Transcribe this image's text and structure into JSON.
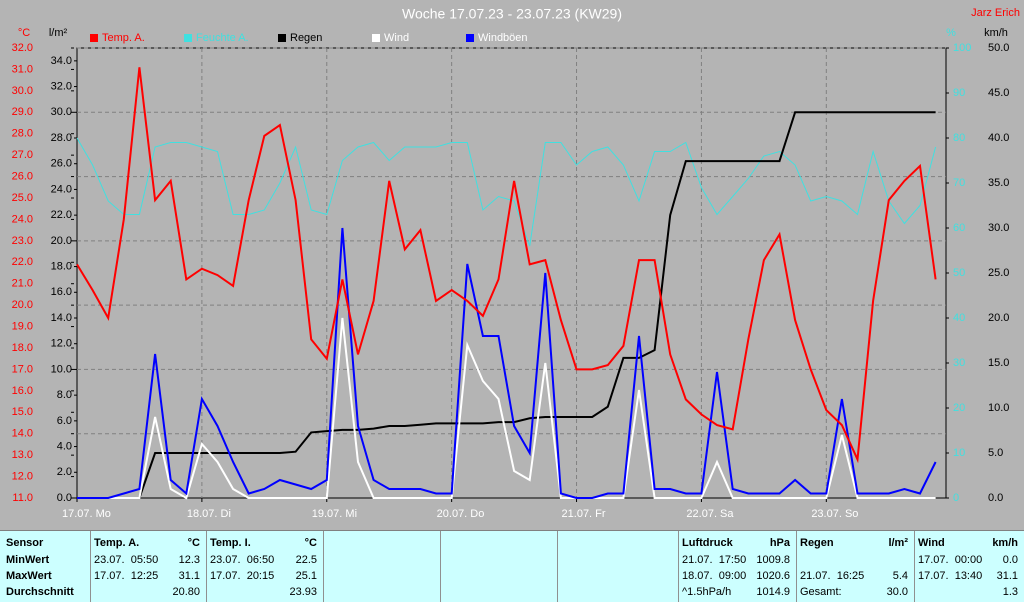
{
  "chart_data": {
    "type": "line",
    "title": "Woche 17.07.23 - 23.07.23 (KW29)",
    "author": "Jarz Erich",
    "axis_units": {
      "y": "°C",
      "y2": "l/m²",
      "y3": "%",
      "y4": "km/h"
    },
    "x": [
      0,
      3,
      6,
      9,
      12,
      15,
      18,
      21,
      24,
      27,
      30,
      33,
      36,
      39,
      42,
      45,
      48,
      51,
      54,
      57,
      60,
      63,
      66,
      69,
      72,
      75,
      78,
      81,
      84,
      87,
      90,
      93,
      96,
      99,
      102,
      105,
      108,
      111,
      114,
      117,
      120,
      123,
      126,
      129,
      132,
      135,
      138,
      141,
      144,
      147,
      150,
      153,
      156,
      159,
      162,
      165
    ],
    "xlim": [
      0,
      167
    ],
    "xticks": [
      {
        "value": 0,
        "label": "17.07. Mo"
      },
      {
        "value": 24,
        "label": "18.07. Di"
      },
      {
        "value": 48,
        "label": "19.07. Mi"
      },
      {
        "value": 72,
        "label": "20.07. Do"
      },
      {
        "value": 96,
        "label": "21.07. Fr"
      },
      {
        "value": 120,
        "label": "22.07. Sa"
      },
      {
        "value": 144,
        "label": "23.07. So"
      }
    ],
    "ylim": [
      11,
      32
    ],
    "yticks": [
      {
        "value": 11,
        "label": "11.0"
      },
      {
        "value": 12,
        "label": "12.0"
      },
      {
        "value": 13,
        "label": "13.0"
      },
      {
        "value": 14,
        "label": "14.0"
      },
      {
        "value": 15,
        "label": "15.0"
      },
      {
        "value": 16,
        "label": "16.0"
      },
      {
        "value": 17,
        "label": "17.0"
      },
      {
        "value": 18,
        "label": "18.0"
      },
      {
        "value": 19,
        "label": "19.0"
      },
      {
        "value": 20,
        "label": "20.0"
      },
      {
        "value": 21,
        "label": "21.0"
      },
      {
        "value": 22,
        "label": "22.0"
      },
      {
        "value": 23,
        "label": "23.0"
      },
      {
        "value": 24,
        "label": "24.0"
      },
      {
        "value": 25,
        "label": "25.0"
      },
      {
        "value": 26,
        "label": "26.0"
      },
      {
        "value": 27,
        "label": "27.0"
      },
      {
        "value": 28,
        "label": "28.0"
      },
      {
        "value": 29,
        "label": "29.0"
      },
      {
        "value": 30,
        "label": "30.0"
      },
      {
        "value": 31,
        "label": "31.0"
      },
      {
        "value": 32,
        "label": "32.0"
      }
    ],
    "y2lim": [
      0,
      35
    ],
    "y2ticks": [
      {
        "value": 0,
        "label": "0.0"
      },
      {
        "value": 2,
        "label": "2.0"
      },
      {
        "value": 4,
        "label": "4.0"
      },
      {
        "value": 6,
        "label": "6.0"
      },
      {
        "value": 8,
        "label": "8.0"
      },
      {
        "value": 10,
        "label": "10.0"
      },
      {
        "value": 12,
        "label": "12.0"
      },
      {
        "value": 14,
        "label": "14.0"
      },
      {
        "value": 16,
        "label": "16.0"
      },
      {
        "value": 18,
        "label": "18.0"
      },
      {
        "value": 20,
        "label": "20.0"
      },
      {
        "value": 22,
        "label": "22.0"
      },
      {
        "value": 24,
        "label": "24.0"
      },
      {
        "value": 26,
        "label": "26.0"
      },
      {
        "value": 28,
        "label": "28.0"
      },
      {
        "value": 30,
        "label": "30.0"
      },
      {
        "value": 32,
        "label": "32.0"
      },
      {
        "value": 34,
        "label": "34.0"
      }
    ],
    "y3lim": [
      0,
      100
    ],
    "y3ticks": [
      0,
      10,
      20,
      30,
      40,
      50,
      60,
      70,
      80,
      90,
      100
    ],
    "y4lim": [
      0,
      50
    ],
    "y4ticks": [
      {
        "value": 0,
        "label": "0.0"
      },
      {
        "value": 5,
        "label": "5.0"
      },
      {
        "value": 10,
        "label": "10.0"
      },
      {
        "value": 15,
        "label": "15.0"
      },
      {
        "value": 20,
        "label": "20.0"
      },
      {
        "value": 25,
        "label": "25.0"
      },
      {
        "value": 30,
        "label": "30.0"
      },
      {
        "value": 35,
        "label": "35.0"
      },
      {
        "value": 40,
        "label": "40.0"
      },
      {
        "value": 45,
        "label": "45.0"
      },
      {
        "value": 50,
        "label": "50.0"
      }
    ],
    "grid": true,
    "series": [
      {
        "name": "Temp. A.",
        "color": "#ff0000",
        "axis": "y",
        "values": [
          21.9,
          20.7,
          19.4,
          24.0,
          31.1,
          24.9,
          25.8,
          21.2,
          21.7,
          21.4,
          20.9,
          24.9,
          27.9,
          28.4,
          24.9,
          18.4,
          17.5,
          21.2,
          17.7,
          20.2,
          25.8,
          22.6,
          23.5,
          20.2,
          20.7,
          20.2,
          19.5,
          21.2,
          25.8,
          21.9,
          22.1,
          19.3,
          17.0,
          17.0,
          17.2,
          18.1,
          22.1,
          22.1,
          17.7,
          15.6,
          14.9,
          14.4,
          14.2,
          18.4,
          22.1,
          23.3,
          19.3,
          17.0,
          15.1,
          14.4,
          12.8,
          20.2,
          24.9,
          25.8,
          26.5,
          21.2
        ]
      },
      {
        "name": "Feuchte A.",
        "color": "#40e0e0",
        "axis": "y3",
        "values": [
          80,
          74,
          66,
          63,
          63,
          78,
          79,
          79,
          78,
          77,
          63,
          63,
          64,
          70,
          78,
          64,
          63,
          75,
          78,
          79,
          75,
          78,
          78,
          78,
          79,
          79,
          64,
          67,
          66,
          56,
          79,
          79,
          74,
          77,
          78,
          74,
          66,
          77,
          77,
          79,
          69,
          63,
          67,
          71,
          76,
          77,
          74,
          66,
          67,
          66,
          63,
          77,
          66,
          61,
          65,
          78
        ]
      },
      {
        "name": "Regen",
        "color": "#000000",
        "axis": "y2",
        "values": [
          0,
          0,
          0,
          0,
          0,
          3.5,
          3.5,
          3.5,
          3.5,
          3.5,
          3.5,
          3.5,
          3.5,
          3.5,
          3.6,
          5.1,
          5.2,
          5.3,
          5.3,
          5.4,
          5.6,
          5.6,
          5.7,
          5.8,
          5.8,
          5.8,
          5.8,
          5.9,
          5.9,
          6.2,
          6.3,
          6.3,
          6.3,
          6.3,
          7.1,
          10.9,
          10.9,
          11.5,
          22.0,
          26.2,
          26.2,
          26.2,
          26.2,
          26.2,
          26.2,
          26.2,
          30.0,
          30.0,
          30.0,
          30.0,
          30.0,
          30.0,
          30.0,
          30.0,
          30.0,
          30.0
        ]
      },
      {
        "name": "Wind",
        "color": "#ffffff",
        "axis": "y4",
        "values": [
          0,
          0,
          0,
          0,
          0,
          9,
          1,
          0,
          6,
          4,
          1,
          0,
          0,
          0,
          0,
          0,
          0,
          20,
          4,
          0,
          0,
          0,
          0,
          0,
          0,
          17,
          13,
          11,
          3,
          2,
          15,
          0,
          0,
          0,
          0,
          0,
          12,
          0,
          0,
          0,
          0,
          4,
          0,
          0,
          0,
          0,
          0,
          0,
          0,
          7,
          0,
          0,
          0,
          0,
          0,
          0
        ]
      },
      {
        "name": "Windböen",
        "color": "#0000ff",
        "axis": "y4",
        "values": [
          0,
          0,
          0,
          0.5,
          1,
          16,
          2,
          0.5,
          11,
          8,
          4,
          0.5,
          1,
          2,
          1.5,
          1,
          2,
          30,
          8,
          2,
          1,
          1,
          1,
          0.5,
          0.5,
          26,
          18,
          18,
          8,
          5,
          25,
          0.5,
          0,
          0,
          0.5,
          0.5,
          18,
          1,
          1,
          0.5,
          0.5,
          14,
          1,
          0.5,
          0.5,
          0.5,
          2,
          0.5,
          0.5,
          11,
          0.5,
          0.5,
          0.5,
          1,
          0.5,
          4
        ]
      }
    ]
  },
  "stats": {
    "row_labels": [
      "Sensor",
      "MinWert",
      "MaxWert",
      "Durchschnitt"
    ],
    "columns": [
      {
        "name": "Temp. A.",
        "unit": "°C",
        "min_time": "23.07.  05:50",
        "min": "12.3",
        "max_time": "17.07.  12:25",
        "max": "31.1",
        "avg": "20.80"
      },
      {
        "name": "Temp. I.",
        "unit": "°C",
        "min_time": "23.07.  06:50",
        "min": "22.5",
        "max_time": "17.07.  20:15",
        "max": "25.1",
        "avg": "23.93"
      },
      {
        "name": "Luftdruck",
        "unit": "hPa",
        "min_time": "21.07.  17:50",
        "min": "1009.8",
        "max_time": "18.07.  09:00",
        "max": "1020.6",
        "avg_time": "^1.5hPa/h",
        "avg": "1014.9"
      },
      {
        "name": "Regen",
        "unit": "l/m²",
        "max_time": "21.07.  16:25",
        "max": "5.4",
        "avg_time": "Gesamt:",
        "avg": "30.0"
      },
      {
        "name": "Wind",
        "unit": "km/h",
        "min_time": "17.07.  00:00",
        "min": "0.0",
        "max_time": "17.07.  13:40",
        "max": "31.1",
        "avg": "1.3"
      }
    ]
  }
}
